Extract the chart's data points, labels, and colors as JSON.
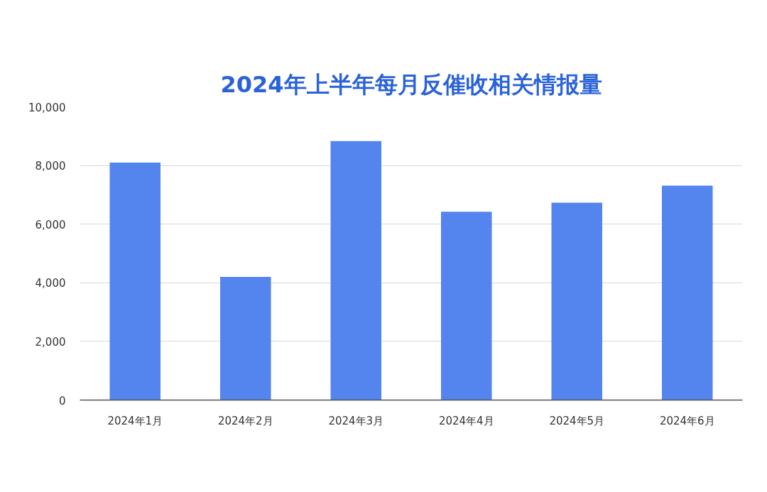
{
  "chart_data": {
    "type": "bar",
    "title": "2024年上半年每月反催收相关情报量",
    "categories": [
      "2024年1月",
      "2024年2月",
      "2024年3月",
      "2024年4月",
      "2024年5月",
      "2024年6月"
    ],
    "values": [
      8100,
      4200,
      8830,
      6420,
      6730,
      7310
    ],
    "color": "#5484ee",
    "ylim": [
      0,
      10000
    ],
    "yticks": [
      0,
      {
        "value": 2000,
        "label": "2,000"
      },
      {
        "value": 4000,
        "label": "4,000"
      },
      {
        "value": 6000,
        "label": "6,000"
      },
      {
        "value": 8000,
        "label": "8,000"
      },
      {
        "value": 10000,
        "label": "10,000"
      }
    ],
    "grid": "y"
  }
}
